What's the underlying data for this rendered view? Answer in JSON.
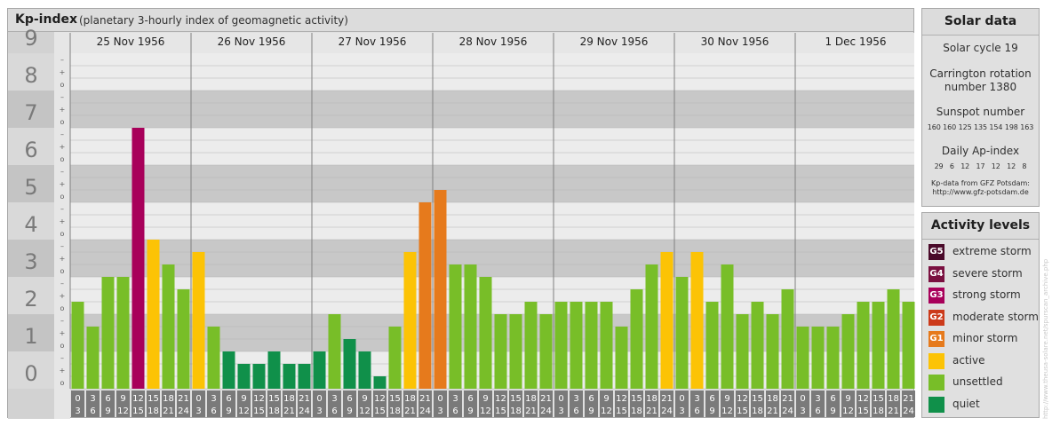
{
  "chart_data": {
    "type": "bar",
    "title": "Kp-index",
    "subtitle": "(planetary 3-hourly index of geomagnetic activity)",
    "ylim": [
      0,
      9
    ],
    "y_ticks": [
      "0",
      "1",
      "2",
      "3",
      "4",
      "5",
      "6",
      "7",
      "8",
      "9"
    ],
    "minor_ticks": [
      "o",
      "+",
      "–"
    ],
    "days": [
      "25 Nov 1956",
      "26 Nov 1956",
      "27 Nov 1956",
      "28 Nov 1956",
      "29 Nov 1956",
      "30 Nov 1956",
      "1 Dec 1956"
    ],
    "interval_top": [
      "0",
      "3",
      "6",
      "9",
      "12",
      "15",
      "18",
      "21"
    ],
    "interval_bottom": [
      "3",
      "6",
      "9",
      "12",
      "15",
      "18",
      "21",
      "24"
    ],
    "values": [
      2.333,
      1.667,
      3.0,
      3.0,
      7.0,
      4.0,
      3.333,
      2.667,
      3.667,
      1.667,
      1.0,
      0.667,
      0.667,
      1.0,
      0.667,
      0.667,
      1.0,
      2.0,
      1.333,
      1.0,
      0.333,
      1.667,
      3.667,
      5.0,
      5.333,
      3.333,
      3.333,
      3.0,
      2.0,
      2.0,
      2.333,
      2.0,
      2.333,
      2.333,
      2.333,
      2.333,
      1.667,
      2.667,
      3.333,
      3.667,
      3.0,
      3.667,
      2.333,
      3.333,
      2.0,
      2.333,
      2.0,
      2.667,
      1.667,
      1.667,
      1.667,
      2.0,
      2.333,
      2.333,
      2.667,
      2.333
    ],
    "grid": true,
    "legend": "right"
  },
  "colors": {
    "quiet": "#10904a",
    "unsettled": "#78be28",
    "active": "#fcc305",
    "minor_storm": "#e67a1c",
    "strong_storm": "#a8005a"
  },
  "solar_data": {
    "title": "Solar data",
    "cycle": "Solar cycle 19",
    "carrington_line1": "Carrington rotation",
    "carrington_line2": "number 1380",
    "sunspot_label": "Sunspot number",
    "sunspot_values": "160 160 125 135 154 198 163",
    "ap_label": "Daily Ap-index",
    "ap_values": "29   6   12   17   12   12   8",
    "source_line1": "Kp-data from GFZ Potsdam:",
    "source_line2": "http://www.gfz-potsdam.de"
  },
  "activity_levels": {
    "title": "Activity levels",
    "items": [
      {
        "code": "G5",
        "label": "extreme storm",
        "color": "#4a0a2a"
      },
      {
        "code": "G4",
        "label": "severe storm",
        "color": "#7a1040"
      },
      {
        "code": "G3",
        "label": "strong storm",
        "color": "#a8005a"
      },
      {
        "code": "G2",
        "label": "moderate storm",
        "color": "#cc3a1a"
      },
      {
        "code": "G1",
        "label": "minor storm",
        "color": "#e67a1c"
      },
      {
        "code": "",
        "label": "active",
        "color": "#fcc305"
      },
      {
        "code": "",
        "label": "unsettled",
        "color": "#78be28"
      },
      {
        "code": "",
        "label": "quiet",
        "color": "#10904a"
      }
    ]
  },
  "watermark": "http://www.theusa-solare.net/spurscan_archive.php"
}
